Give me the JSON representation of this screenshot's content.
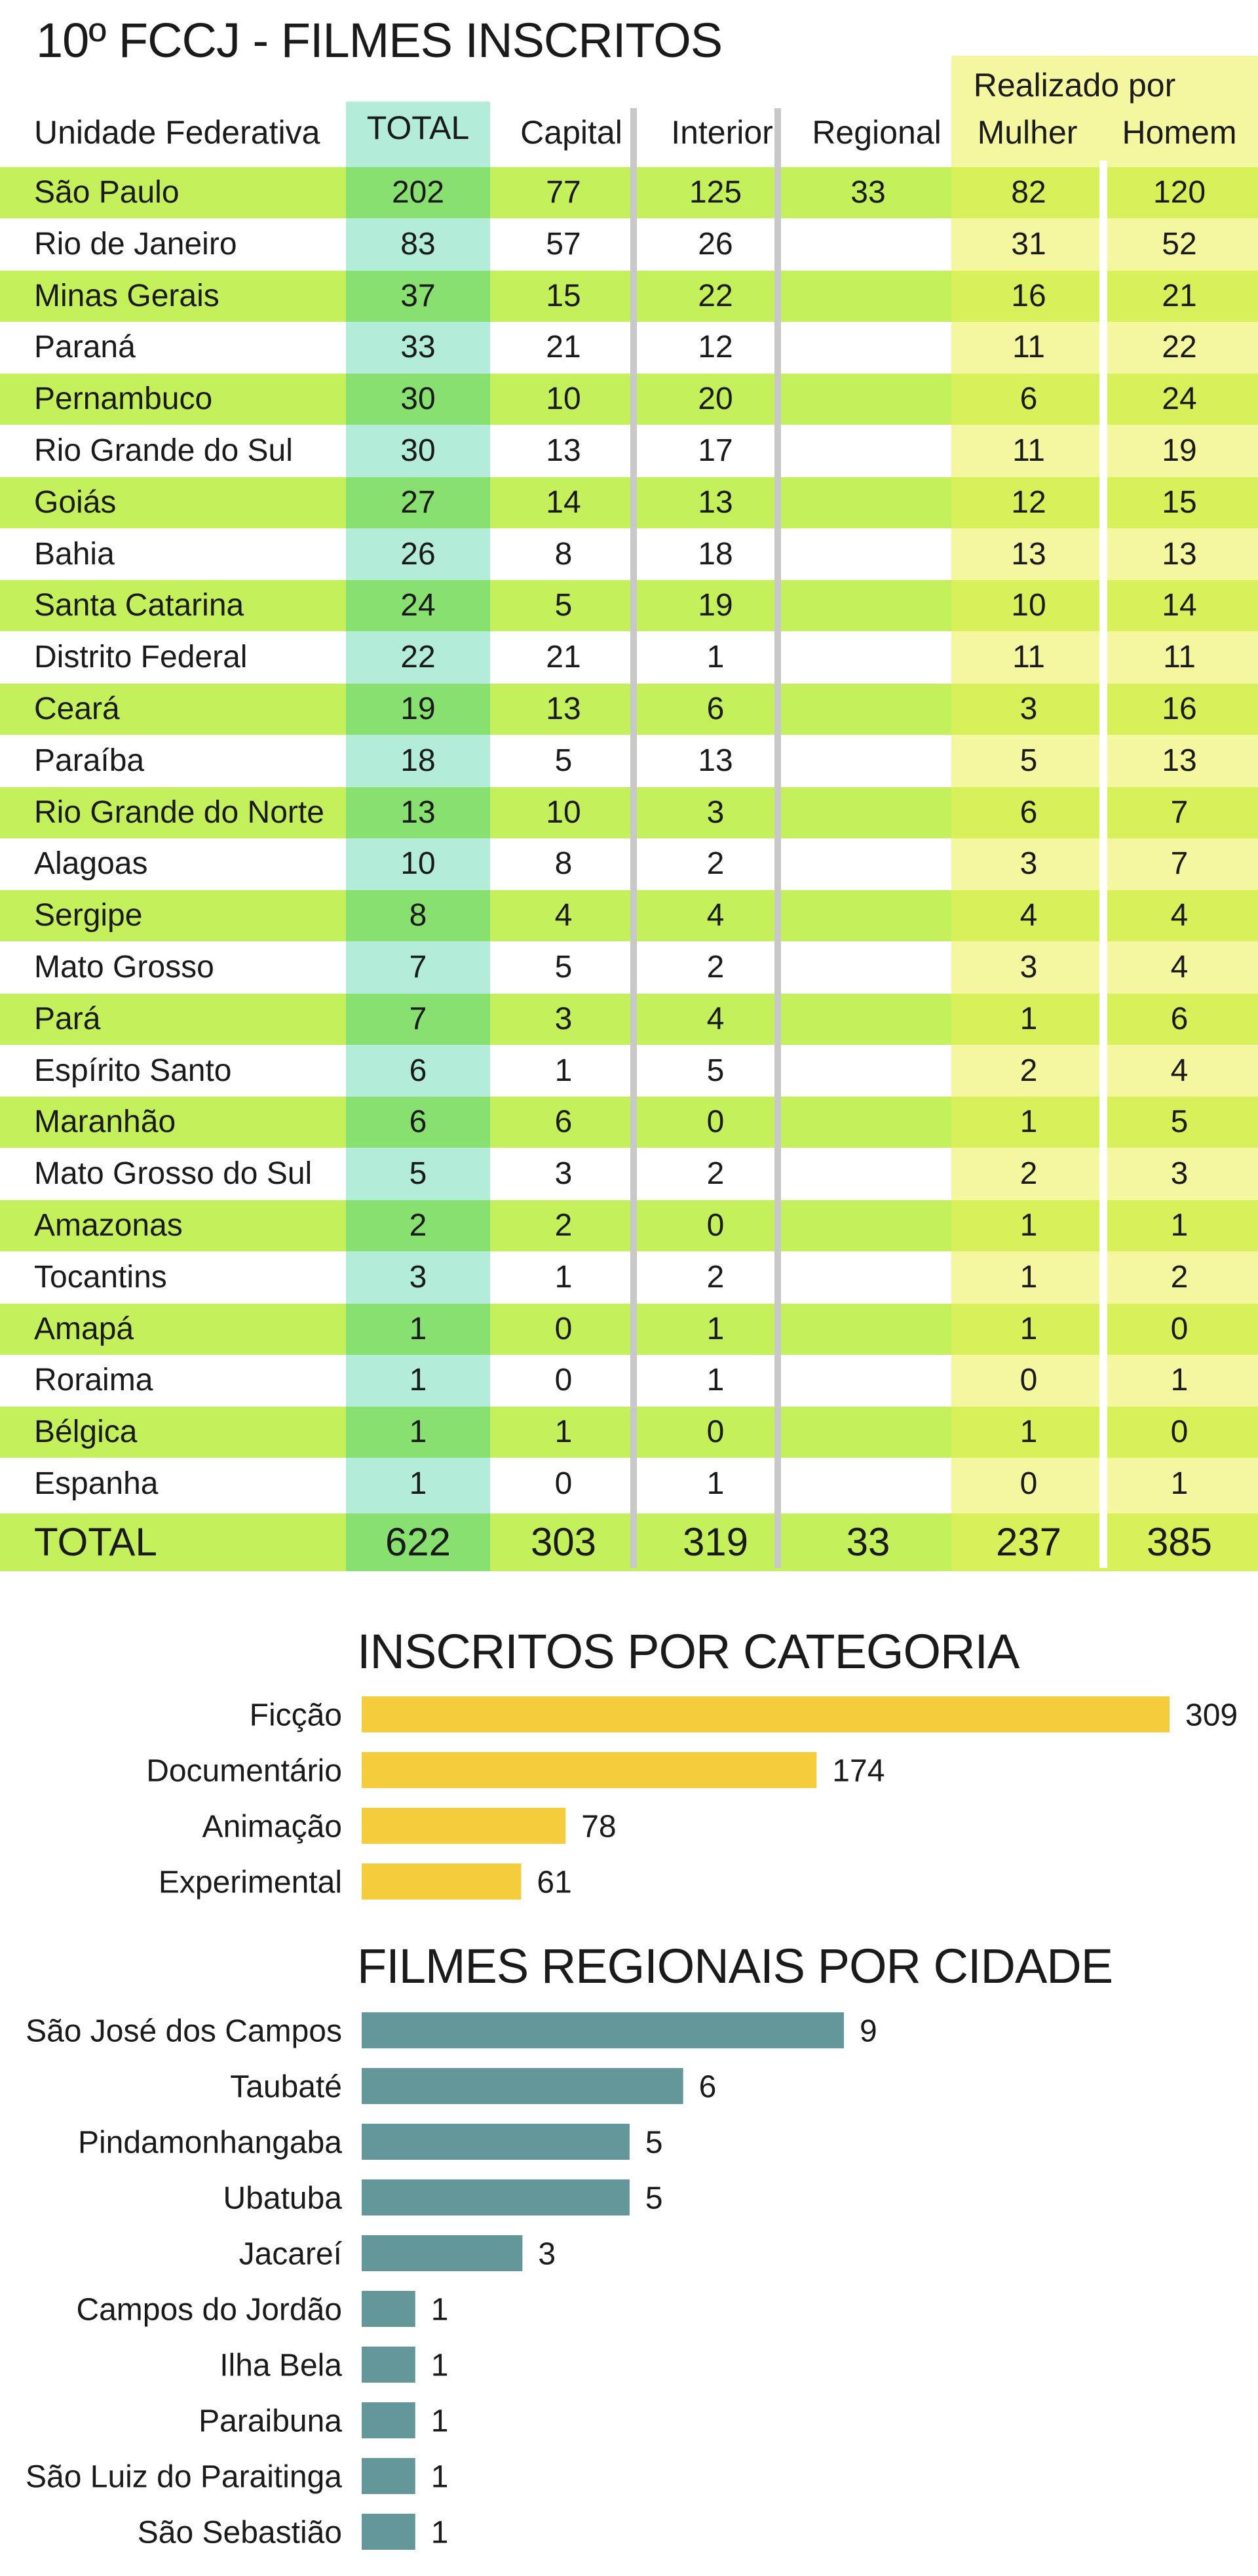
{
  "table": {
    "title": "10º FCCJ - FILMES INSCRITOS",
    "header": {
      "unidade": "Unidade Federativa",
      "total": "TOTAL",
      "capital": "Capital",
      "interior": "Interior",
      "regional": "Regional",
      "realizado_por": "Realizado por",
      "mulher": "Mulher",
      "homem": "Homem"
    },
    "rows": [
      {
        "uf": "São Paulo",
        "total": "202",
        "capital": "77",
        "interior": "125",
        "regional": "33",
        "mulher": "82",
        "homem": "120"
      },
      {
        "uf": "Rio de Janeiro",
        "total": "83",
        "capital": "57",
        "interior": "26",
        "regional": "",
        "mulher": "31",
        "homem": "52"
      },
      {
        "uf": "Minas Gerais",
        "total": "37",
        "capital": "15",
        "interior": "22",
        "regional": "",
        "mulher": "16",
        "homem": "21"
      },
      {
        "uf": "Paraná",
        "total": "33",
        "capital": "21",
        "interior": "12",
        "regional": "",
        "mulher": "11",
        "homem": "22"
      },
      {
        "uf": "Pernambuco",
        "total": "30",
        "capital": "10",
        "interior": "20",
        "regional": "",
        "mulher": "6",
        "homem": "24"
      },
      {
        "uf": "Rio Grande do Sul",
        "total": "30",
        "capital": "13",
        "interior": "17",
        "regional": "",
        "mulher": "11",
        "homem": "19"
      },
      {
        "uf": "Goiás",
        "total": "27",
        "capital": "14",
        "interior": "13",
        "regional": "",
        "mulher": "12",
        "homem": "15"
      },
      {
        "uf": "Bahia",
        "total": "26",
        "capital": "8",
        "interior": "18",
        "regional": "",
        "mulher": "13",
        "homem": "13"
      },
      {
        "uf": "Santa Catarina",
        "total": "24",
        "capital": "5",
        "interior": "19",
        "regional": "",
        "mulher": "10",
        "homem": "14"
      },
      {
        "uf": "Distrito Federal",
        "total": "22",
        "capital": "21",
        "interior": "1",
        "regional": "",
        "mulher": "11",
        "homem": "11"
      },
      {
        "uf": "Ceará",
        "total": "19",
        "capital": "13",
        "interior": "6",
        "regional": "",
        "mulher": "3",
        "homem": "16"
      },
      {
        "uf": "Paraíba",
        "total": "18",
        "capital": "5",
        "interior": "13",
        "regional": "",
        "mulher": "5",
        "homem": "13"
      },
      {
        "uf": "Rio Grande do Norte",
        "total": "13",
        "capital": "10",
        "interior": "3",
        "regional": "",
        "mulher": "6",
        "homem": "7"
      },
      {
        "uf": "Alagoas",
        "total": "10",
        "capital": "8",
        "interior": "2",
        "regional": "",
        "mulher": "3",
        "homem": "7"
      },
      {
        "uf": "Sergipe",
        "total": "8",
        "capital": "4",
        "interior": "4",
        "regional": "",
        "mulher": "4",
        "homem": "4"
      },
      {
        "uf": "Mato Grosso",
        "total": "7",
        "capital": "5",
        "interior": "2",
        "regional": "",
        "mulher": "3",
        "homem": "4"
      },
      {
        "uf": "Pará",
        "total": "7",
        "capital": "3",
        "interior": "4",
        "regional": "",
        "mulher": "1",
        "homem": "6"
      },
      {
        "uf": "Espírito Santo",
        "total": "6",
        "capital": "1",
        "interior": "5",
        "regional": "",
        "mulher": "2",
        "homem": "4"
      },
      {
        "uf": "Maranhão",
        "total": "6",
        "capital": "6",
        "interior": "0",
        "regional": "",
        "mulher": "1",
        "homem": "5"
      },
      {
        "uf": "Mato Grosso do Sul",
        "total": "5",
        "capital": "3",
        "interior": "2",
        "regional": "",
        "mulher": "2",
        "homem": "3"
      },
      {
        "uf": "Amazonas",
        "total": "2",
        "capital": "2",
        "interior": "0",
        "regional": "",
        "mulher": "1",
        "homem": "1"
      },
      {
        "uf": "Tocantins",
        "total": "3",
        "capital": "1",
        "interior": "2",
        "regional": "",
        "mulher": "1",
        "homem": "2"
      },
      {
        "uf": "Amapá",
        "total": "1",
        "capital": "0",
        "interior": "1",
        "regional": "",
        "mulher": "1",
        "homem": "0"
      },
      {
        "uf": "Roraima",
        "total": "1",
        "capital": "0",
        "interior": "1",
        "regional": "",
        "mulher": "0",
        "homem": "1"
      },
      {
        "uf": "Bélgica",
        "total": "1",
        "capital": "1",
        "interior": "0",
        "regional": "",
        "mulher": "1",
        "homem": "0"
      },
      {
        "uf": "Espanha",
        "total": "1",
        "capital": "0",
        "interior": "1",
        "regional": "",
        "mulher": "0",
        "homem": "1"
      }
    ],
    "total_row": {
      "uf": "TOTAL",
      "total": "622",
      "capital": "303",
      "interior": "319",
      "regional": "33",
      "mulher": "237",
      "homem": "385"
    }
  },
  "chart_data": [
    {
      "type": "table",
      "title": "10º FCCJ - FILMES INSCRITOS",
      "columns": [
        "Unidade Federativa",
        "TOTAL",
        "Capital",
        "Interior",
        "Regional",
        "Realizado por Mulher",
        "Realizado por Homem"
      ],
      "note": "rows are listed in table.rows"
    },
    {
      "type": "bar",
      "orientation": "horizontal",
      "title": "INSCRITOS POR CATEGORIA",
      "categories": [
        "Ficção",
        "Documentário",
        "Animação",
        "Experimental"
      ],
      "values": [
        309,
        174,
        78,
        61
      ],
      "color": "#f5cd3c",
      "xlim": [
        0,
        309
      ]
    },
    {
      "type": "bar",
      "orientation": "horizontal",
      "title": "FILMES REGIONAIS POR CIDADE",
      "categories": [
        "São José dos Campos",
        "Taubaté",
        "Pindamonhangaba",
        "Ubatuba",
        "Jacareí",
        "Campos do Jordão",
        "Ilha Bela",
        "Paraibuna",
        "São Luiz do Paraitinga",
        "São Sebastião"
      ],
      "values": [
        9,
        6,
        5,
        5,
        3,
        1,
        1,
        1,
        1,
        1
      ],
      "color": "#64979a",
      "xlim": [
        0,
        9
      ]
    }
  ],
  "colors": {
    "row_green": "#c4f05c",
    "total_col_light": "#b3ecd8",
    "total_col_dark": "#88e070",
    "gender_col_light": "#f4f7a0",
    "gender_col_dark": "#d8f05a",
    "separator": "#c8c8c8",
    "category_bar": "#f5cd3c",
    "city_bar": "#64979a"
  }
}
